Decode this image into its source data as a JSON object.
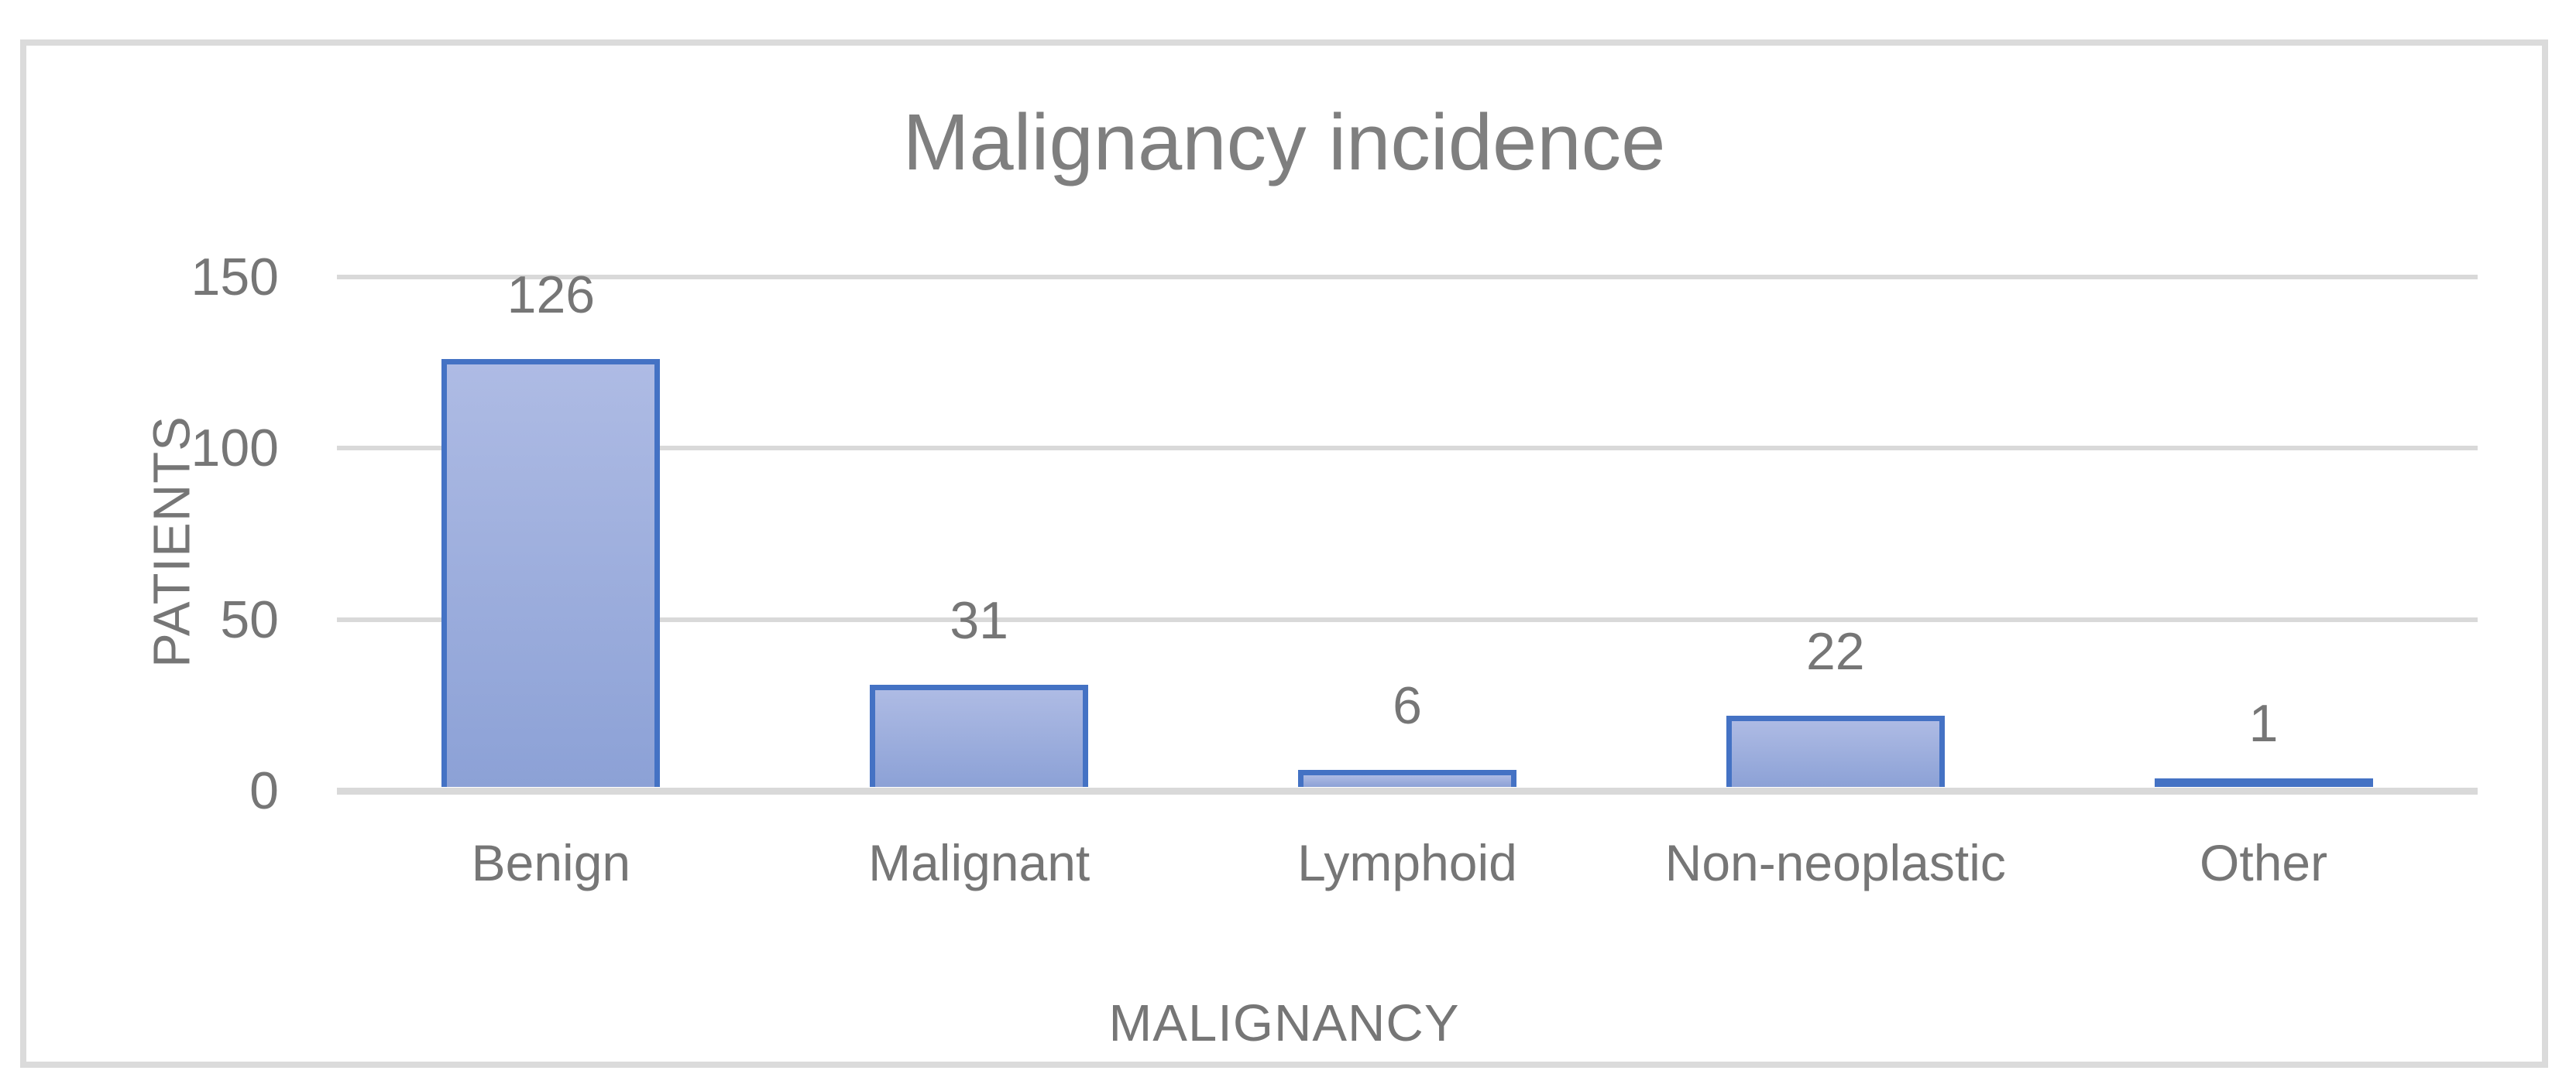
{
  "chart_data": {
    "type": "bar",
    "title": "Malignancy incidence",
    "categories": [
      "Benign",
      "Malignant",
      "Lymphoid",
      "Non-neoplastic",
      "Other"
    ],
    "values": [
      126,
      31,
      6,
      22,
      1
    ],
    "data_labels": [
      "126",
      "31",
      "6",
      "22",
      "1"
    ],
    "xlabel": "MALIGNANCY",
    "ylabel": "PATIENTS",
    "ylim": [
      0,
      150
    ],
    "yticks": [
      0,
      50,
      100,
      150
    ],
    "ytick_labels": [
      "0",
      "50",
      "100",
      "150"
    ],
    "grid": true,
    "legend": "none",
    "colors": {
      "bar_fill_top": "#aebbe4",
      "bar_fill_bottom": "#8ca1d6",
      "bar_border": "#4472c4",
      "gridline": "#d9d9d9",
      "frame_border": "#dbdbdb",
      "title_text": "#7f7f7f",
      "label_text": "#767676"
    }
  }
}
